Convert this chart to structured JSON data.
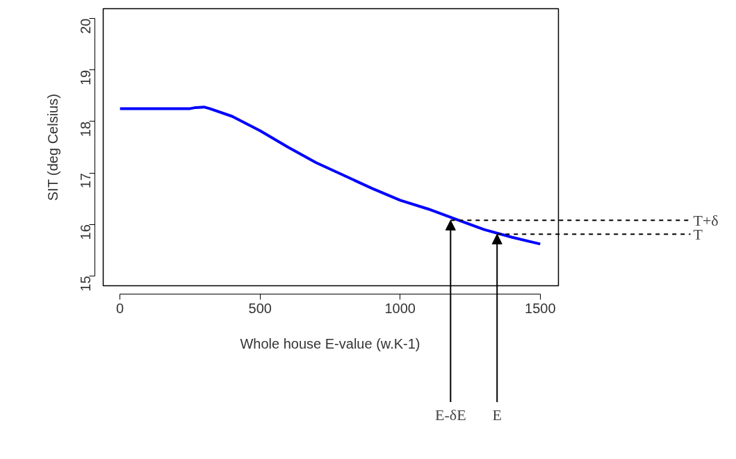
{
  "chart_data": {
    "type": "line",
    "xlabel": "Whole house E-value (w.K-1)",
    "ylabel": "SIT (deg Celsius)",
    "x": [
      0,
      250,
      270,
      300,
      320,
      400,
      500,
      600,
      700,
      800,
      900,
      1000,
      1100,
      1200,
      1300,
      1400,
      1500
    ],
    "series": [
      {
        "color": "#0000ff",
        "values": [
          18.25,
          18.25,
          18.27,
          18.28,
          18.25,
          18.1,
          17.82,
          17.5,
          17.2,
          16.95,
          16.7,
          16.47,
          16.3,
          16.1,
          15.9,
          15.75,
          15.62
        ]
      }
    ],
    "xlim": [
      -60,
      1565
    ],
    "ylim": [
      14.81,
      20.19
    ],
    "xticks": [
      0,
      500,
      1000,
      1500
    ],
    "yticks": [
      15,
      16,
      17,
      18,
      19,
      20
    ],
    "grid": false,
    "ref_lines": [
      {
        "axis": "y",
        "value": 16.08,
        "label": "T+δ",
        "line_style": "dashed"
      },
      {
        "axis": "y",
        "value": 15.81,
        "label": "T",
        "line_style": "dashed"
      }
    ],
    "annotations": [
      {
        "text": "E-δE",
        "x": 1180,
        "y": 16.08
      },
      {
        "text": "E",
        "x": 1346,
        "y": 15.81
      }
    ]
  }
}
